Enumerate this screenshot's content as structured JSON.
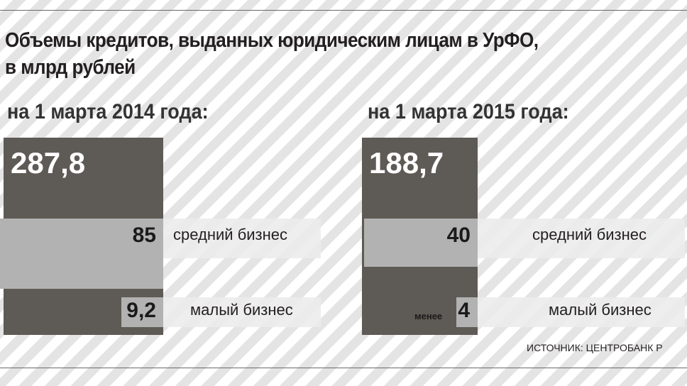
{
  "title": {
    "line1": "Объемы кредитов, выданных юридическим лицам в УрФО,",
    "line2": "в млрд рублей"
  },
  "source": "ИСТОЧНИК: ЦЕНТРОБАНК Р",
  "colors": {
    "panel": "#5e5a55",
    "bar": "#b2b2b2",
    "band": "#ececec",
    "text": "#231f20"
  },
  "chart_data": [
    {
      "type": "bar",
      "heading": "на 1 марта 2014 года:",
      "total": "287,8",
      "total_value": 287.8,
      "categories": [
        "средний бизнес",
        "малый бизнес"
      ],
      "labels": [
        "85",
        "9,2"
      ],
      "values": [
        85,
        9.2
      ],
      "prefix": [
        "",
        ""
      ]
    },
    {
      "type": "bar",
      "heading": "на 1 марта 2015 года:",
      "total": "188,7",
      "total_value": 188.7,
      "categories": [
        "средний бизнес",
        "малый бизнес"
      ],
      "labels": [
        "40",
        "4"
      ],
      "values": [
        40,
        4
      ],
      "prefix": [
        "",
        "менее"
      ]
    }
  ]
}
